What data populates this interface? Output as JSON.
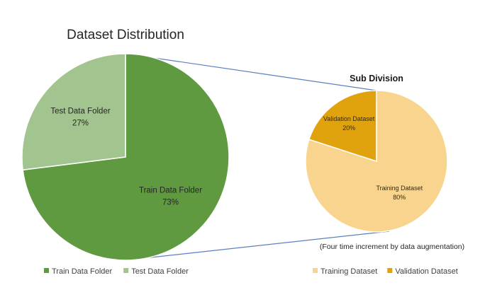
{
  "chart_data": [
    {
      "type": "pie",
      "title": "Dataset Distribution",
      "categories": [
        "Train Data Folder",
        "Test Data Folder"
      ],
      "values": [
        73,
        27
      ],
      "labels": [
        "73%",
        "27%"
      ],
      "colors": [
        "#5f9940",
        "#a2c48f"
      ],
      "legend_position": "bottom"
    },
    {
      "type": "pie",
      "title": "Sub Division",
      "categories": [
        "Training Dataset",
        "Validation Dataset"
      ],
      "values": [
        80,
        20
      ],
      "labels": [
        "80%",
        "20%"
      ],
      "colors": [
        "#f8d48f",
        "#e0a30e"
      ],
      "note": "(Four time increment by data augmentation)",
      "legend_position": "bottom"
    }
  ]
}
